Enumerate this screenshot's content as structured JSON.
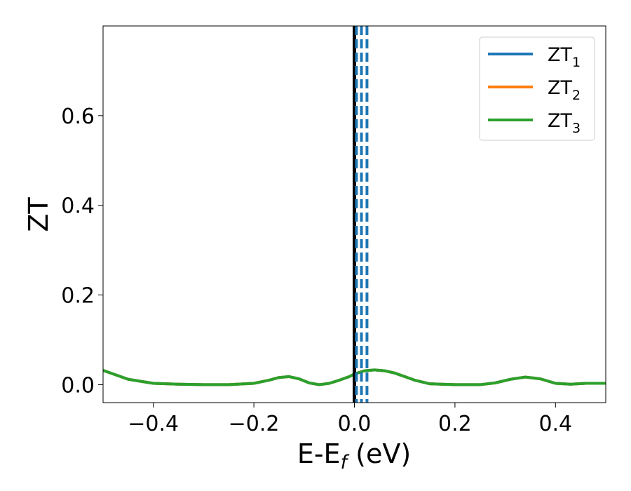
{
  "chart_data": {
    "type": "line",
    "xlabel": "E-E",
    "xlabel_sub": "f",
    "xlabel_unit": " (eV)",
    "ylabel": "ZT",
    "xlim": [
      -0.5,
      0.5
    ],
    "ylim": [
      -0.04,
      0.8
    ],
    "xticks": [
      -0.4,
      -0.2,
      0.0,
      0.2,
      0.4
    ],
    "xtick_labels": [
      "−0.4",
      "−0.2",
      "0.0",
      "0.2",
      "0.4"
    ],
    "yticks": [
      0.0,
      0.2,
      0.4,
      0.6
    ],
    "ytick_labels": [
      "0.0",
      "0.2",
      "0.4",
      "0.6"
    ],
    "grid": false,
    "legend_position": "top-right",
    "series": [
      {
        "name": "ZT",
        "name_sub": "1",
        "color": "#1f77b4",
        "x": [
          -0.5,
          -0.45,
          -0.4,
          -0.35,
          -0.3,
          -0.25,
          -0.2,
          -0.17,
          -0.15,
          -0.13,
          -0.11,
          -0.09,
          -0.07,
          -0.05,
          -0.03,
          -0.01,
          0.0,
          0.02,
          0.04,
          0.06,
          0.08,
          0.1,
          0.12,
          0.15,
          0.2,
          0.25,
          0.28,
          0.31,
          0.34,
          0.37,
          0.4,
          0.43,
          0.46,
          0.5
        ],
        "y": [
          0.032,
          0.012,
          0.003,
          0.001,
          0.0,
          0.0,
          0.003,
          0.01,
          0.016,
          0.018,
          0.013,
          0.004,
          0.0,
          0.003,
          0.01,
          0.018,
          0.024,
          0.031,
          0.033,
          0.031,
          0.026,
          0.018,
          0.01,
          0.002,
          0.0,
          0.0,
          0.004,
          0.012,
          0.017,
          0.013,
          0.003,
          0.001,
          0.003,
          0.003
        ]
      },
      {
        "name": "ZT",
        "name_sub": "2",
        "color": "#ff7f0e",
        "x": [
          -0.5,
          -0.45,
          -0.4,
          -0.35,
          -0.3,
          -0.25,
          -0.2,
          -0.17,
          -0.15,
          -0.13,
          -0.11,
          -0.09,
          -0.07,
          -0.05,
          -0.03,
          -0.01,
          0.0,
          0.02,
          0.04,
          0.06,
          0.08,
          0.1,
          0.12,
          0.15,
          0.2,
          0.25,
          0.28,
          0.31,
          0.34,
          0.37,
          0.4,
          0.43,
          0.46,
          0.5
        ],
        "y": [
          0.032,
          0.012,
          0.003,
          0.001,
          0.0,
          0.0,
          0.003,
          0.01,
          0.016,
          0.018,
          0.013,
          0.004,
          0.0,
          0.003,
          0.01,
          0.018,
          0.024,
          0.031,
          0.033,
          0.031,
          0.026,
          0.018,
          0.01,
          0.002,
          0.0,
          0.0,
          0.004,
          0.012,
          0.017,
          0.013,
          0.003,
          0.001,
          0.003,
          0.003
        ]
      },
      {
        "name": "ZT",
        "name_sub": "3",
        "color": "#2ca02c",
        "x": [
          -0.5,
          -0.45,
          -0.4,
          -0.35,
          -0.3,
          -0.25,
          -0.2,
          -0.17,
          -0.15,
          -0.13,
          -0.11,
          -0.09,
          -0.07,
          -0.05,
          -0.03,
          -0.01,
          0.0,
          0.02,
          0.04,
          0.06,
          0.08,
          0.1,
          0.12,
          0.15,
          0.2,
          0.25,
          0.28,
          0.31,
          0.34,
          0.37,
          0.4,
          0.43,
          0.46,
          0.5
        ],
        "y": [
          0.032,
          0.012,
          0.003,
          0.001,
          0.0,
          0.0,
          0.003,
          0.01,
          0.016,
          0.018,
          0.013,
          0.004,
          0.0,
          0.003,
          0.01,
          0.018,
          0.024,
          0.031,
          0.033,
          0.031,
          0.026,
          0.018,
          0.01,
          0.002,
          0.0,
          0.0,
          0.004,
          0.012,
          0.017,
          0.013,
          0.003,
          0.001,
          0.003,
          0.003
        ]
      }
    ],
    "vlines": [
      {
        "x": 0.0,
        "color": "#000000",
        "style": "solid"
      },
      {
        "x": 0.004,
        "color": "#1f77b4",
        "style": "dashed"
      },
      {
        "x": 0.014,
        "color": "#1f77b4",
        "style": "dashed"
      },
      {
        "x": 0.025,
        "color": "#1f77b4",
        "style": "dashed"
      }
    ]
  }
}
